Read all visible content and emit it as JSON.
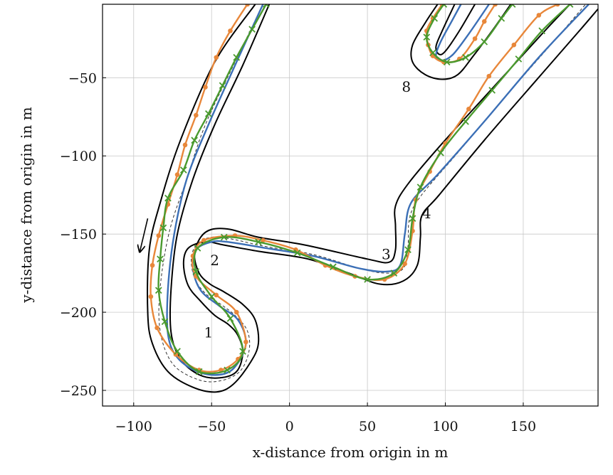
{
  "chart_data": {
    "type": "line",
    "title": "",
    "xlabel": "x-distance from origin in m",
    "ylabel": "y-distance from origin in m",
    "xlim": [
      -120,
      198
    ],
    "ylim": [
      -260,
      -3
    ],
    "grid": true,
    "x_ticks": [
      -100,
      -50,
      0,
      50,
      100,
      150
    ],
    "y_ticks": [
      -50,
      -100,
      -150,
      -200,
      -250
    ],
    "x_tick_labels": [
      "−100",
      "−50",
      "0",
      "50",
      "100",
      "150"
    ],
    "y_tick_labels": [
      "−50",
      "−100",
      "−150",
      "−200",
      "−250"
    ],
    "colors": {
      "boundary": "#000000",
      "centerline": "#333333",
      "blue": "#3b6fb6",
      "orange": "#e8873a",
      "green": "#4a9a2e",
      "grid": "#c8c8c8"
    },
    "annotations": [
      {
        "text": "1",
        "x": -52,
        "y": -216
      },
      {
        "text": "2",
        "x": -48,
        "y": -170
      },
      {
        "text": "3",
        "x": 62,
        "y": -166
      },
      {
        "text": "4",
        "x": 88,
        "y": -140
      },
      {
        "text": "8",
        "x": 75,
        "y": -59
      }
    ],
    "direction_arrow": {
      "from": [
        -91,
        -140
      ],
      "to": [
        -96,
        -161
      ]
    },
    "boundaries": [
      {
        "name": "",
        "points": [
          [
            -22,
            -3
          ],
          [
            -48,
            -40
          ],
          [
            -70,
            -90
          ],
          [
            -83,
            -130
          ],
          [
            -90,
            -160
          ],
          [
            -91,
            -200
          ],
          [
            -88,
            -220
          ],
          [
            -78,
            -238
          ],
          [
            -62,
            -248
          ],
          [
            -47,
            -251
          ],
          [
            -36,
            -246
          ],
          [
            -25,
            -232
          ],
          [
            -20,
            -220
          ],
          [
            -22,
            -205
          ],
          [
            -30,
            -195
          ],
          [
            -42,
            -187
          ],
          [
            -51,
            -182
          ],
          [
            -58,
            -175
          ],
          [
            -61,
            -163
          ],
          [
            -57,
            -152
          ],
          [
            -50,
            -147
          ],
          [
            -38,
            -147
          ],
          [
            -20,
            -152
          ],
          [
            10,
            -157
          ],
          [
            50,
            -166
          ],
          [
            64,
            -168
          ],
          [
            68,
            -160
          ],
          [
            68,
            -145
          ],
          [
            68,
            -132
          ],
          [
            76,
            -118
          ],
          [
            98,
            -92
          ],
          [
            130,
            -57
          ],
          [
            162,
            -22
          ],
          [
            180,
            -3
          ]
        ]
      },
      {
        "name": "",
        "points": [
          [
            -13,
            -3
          ],
          [
            -30,
            -42
          ],
          [
            -48,
            -80
          ],
          [
            -62,
            -115
          ],
          [
            -72,
            -150
          ],
          [
            -76,
            -185
          ],
          [
            -76,
            -213
          ],
          [
            -70,
            -230
          ],
          [
            -58,
            -240
          ],
          [
            -45,
            -242
          ],
          [
            -34,
            -238
          ],
          [
            -30,
            -226
          ],
          [
            -33,
            -215
          ],
          [
            -39,
            -208
          ],
          [
            -48,
            -202
          ],
          [
            -57,
            -193
          ],
          [
            -65,
            -183
          ],
          [
            -68,
            -169
          ],
          [
            -65,
            -159
          ],
          [
            -54,
            -155
          ],
          [
            -42,
            -157
          ],
          [
            -20,
            -161
          ],
          [
            12,
            -166
          ],
          [
            38,
            -175
          ],
          [
            58,
            -182
          ],
          [
            73,
            -180
          ],
          [
            82,
            -170
          ],
          [
            84,
            -152
          ],
          [
            85,
            -138
          ],
          [
            96,
            -125
          ],
          [
            125,
            -90
          ],
          [
            158,
            -52
          ],
          [
            186,
            -20
          ],
          [
            198,
            -6
          ]
        ]
      },
      {
        "name": "",
        "points": [
          [
            95,
            -3
          ],
          [
            87,
            -15
          ],
          [
            79,
            -29
          ],
          [
            79,
            -40
          ],
          [
            87,
            -48
          ],
          [
            98,
            -51
          ],
          [
            108,
            -48
          ],
          [
            118,
            -36
          ],
          [
            130,
            -20
          ],
          [
            142,
            -3
          ]
        ]
      },
      {
        "name": "",
        "points": [
          [
            119,
            -3
          ],
          [
            109,
            -20
          ],
          [
            100,
            -33
          ],
          [
            96,
            -35
          ],
          [
            94,
            -30
          ],
          [
            98,
            -20
          ],
          [
            106,
            -3
          ]
        ]
      }
    ],
    "centerline": {
      "name": "",
      "points": [
        [
          -17,
          -3
        ],
        [
          -35,
          -40
        ],
        [
          -54,
          -80
        ],
        [
          -66,
          -115
        ],
        [
          -77,
          -148
        ],
        [
          -83,
          -184
        ],
        [
          -83,
          -212
        ],
        [
          -75,
          -233
        ],
        [
          -59,
          -243
        ],
        [
          -45,
          -244
        ],
        [
          -32,
          -238
        ],
        [
          -26,
          -225
        ],
        [
          -27,
          -212
        ],
        [
          -35,
          -202
        ],
        [
          -44,
          -195
        ],
        [
          -54,
          -188
        ],
        [
          -61,
          -178
        ],
        [
          -63,
          -165
        ],
        [
          -59,
          -156
        ],
        [
          -50,
          -152
        ],
        [
          -38,
          -153
        ],
        [
          -15,
          -158
        ],
        [
          15,
          -163
        ],
        [
          45,
          -172
        ],
        [
          62,
          -175
        ],
        [
          73,
          -172
        ],
        [
          76,
          -158
        ],
        [
          77,
          -140
        ],
        [
          84,
          -126
        ],
        [
          108,
          -98
        ],
        [
          143,
          -57
        ],
        [
          172,
          -24
        ],
        [
          190,
          -3
        ]
      ]
    },
    "series": [
      {
        "name": "",
        "color": "#3b6fb6",
        "marker": "none",
        "points": [
          [
            -17,
            -3
          ],
          [
            -34,
            -40
          ],
          [
            -52,
            -80
          ],
          [
            -66,
            -115
          ],
          [
            -74,
            -150
          ],
          [
            -78,
            -185
          ],
          [
            -78,
            -214
          ],
          [
            -72,
            -229
          ],
          [
            -59,
            -238
          ],
          [
            -45,
            -240
          ],
          [
            -35,
            -235
          ],
          [
            -28,
            -220
          ],
          [
            -33,
            -205
          ],
          [
            -45,
            -196
          ],
          [
            -57,
            -186
          ],
          [
            -62,
            -172
          ],
          [
            -60,
            -160
          ],
          [
            -50,
            -155
          ],
          [
            -40,
            -155
          ],
          [
            -15,
            -159
          ],
          [
            15,
            -164
          ],
          [
            45,
            -172
          ],
          [
            62,
            -174
          ],
          [
            71,
            -170
          ],
          [
            74,
            -150
          ],
          [
            78,
            -130
          ],
          [
            95,
            -112
          ],
          [
            125,
            -78
          ],
          [
            160,
            -37
          ],
          [
            192,
            -3
          ]
        ]
      },
      {
        "name": "",
        "color": "#3b6fb6",
        "marker": "none",
        "points": [
          [
            110,
            -3
          ],
          [
            104,
            -14
          ],
          [
            97,
            -27
          ],
          [
            94,
            -36
          ],
          [
            98,
            -39
          ],
          [
            105,
            -35
          ],
          [
            115,
            -22
          ],
          [
            128,
            -3
          ]
        ]
      },
      {
        "name": "",
        "color": "#e8873a",
        "marker": "dot",
        "points": [
          [
            -27,
            -3
          ],
          [
            -38,
            -20
          ],
          [
            -47,
            -37
          ],
          [
            -54,
            -56
          ],
          [
            -60,
            -74
          ],
          [
            -67,
            -93
          ],
          [
            -72,
            -112
          ],
          [
            -78,
            -131
          ],
          [
            -84,
            -151
          ],
          [
            -88,
            -170
          ],
          [
            -89,
            -190
          ],
          [
            -85,
            -210
          ],
          [
            -73,
            -227
          ],
          [
            -58,
            -237
          ],
          [
            -44,
            -237
          ],
          [
            -33,
            -230
          ],
          [
            -28,
            -219
          ],
          [
            -34,
            -200
          ],
          [
            -47,
            -189
          ],
          [
            -60,
            -177
          ],
          [
            -62,
            -164
          ],
          [
            -55,
            -154
          ],
          [
            -35,
            -151
          ],
          [
            -17,
            -154
          ],
          [
            4,
            -160
          ],
          [
            23,
            -170
          ],
          [
            42,
            -177
          ],
          [
            61,
            -179
          ],
          [
            74,
            -169
          ],
          [
            79,
            -148
          ],
          [
            81,
            -128
          ],
          [
            90,
            -110
          ],
          [
            100,
            -92
          ],
          [
            115,
            -70
          ],
          [
            128,
            -49
          ],
          [
            144,
            -29
          ],
          [
            160,
            -10
          ],
          [
            172,
            -3
          ]
        ]
      },
      {
        "name": "",
        "color": "#e8873a",
        "marker": "dot",
        "points": [
          [
            98,
            -3
          ],
          [
            92,
            -12
          ],
          [
            88,
            -20
          ],
          [
            89,
            -29
          ],
          [
            92,
            -36
          ],
          [
            99,
            -40
          ],
          [
            109,
            -38
          ],
          [
            119,
            -25
          ],
          [
            125,
            -14
          ],
          [
            132,
            -3
          ]
        ]
      },
      {
        "name": "",
        "color": "#4a9a2e",
        "marker": "x",
        "points": [
          [
            -15,
            -3
          ],
          [
            -24,
            -19
          ],
          [
            -34,
            -37
          ],
          [
            -43,
            -55
          ],
          [
            -52,
            -73
          ],
          [
            -61,
            -90
          ],
          [
            -68,
            -109
          ],
          [
            -78,
            -127
          ],
          [
            -81,
            -146
          ],
          [
            -83,
            -166
          ],
          [
            -84,
            -186
          ],
          [
            -80,
            -206
          ],
          [
            -72,
            -225
          ],
          [
            -58,
            -238
          ],
          [
            -40,
            -237
          ],
          [
            -30,
            -225
          ],
          [
            -38,
            -204
          ],
          [
            -50,
            -190
          ],
          [
            -60,
            -174
          ],
          [
            -59,
            -159
          ],
          [
            -42,
            -152
          ],
          [
            -20,
            -155
          ],
          [
            5,
            -162
          ],
          [
            28,
            -171
          ],
          [
            50,
            -179
          ],
          [
            67,
            -175
          ],
          [
            76,
            -160
          ],
          [
            79,
            -140
          ],
          [
            84,
            -120
          ],
          [
            97,
            -98
          ],
          [
            113,
            -78
          ],
          [
            130,
            -58
          ],
          [
            147,
            -38
          ],
          [
            162,
            -20
          ],
          [
            180,
            -3
          ]
        ]
      },
      {
        "name": "",
        "color": "#4a9a2e",
        "marker": "x",
        "points": [
          [
            99,
            -3
          ],
          [
            93,
            -12
          ],
          [
            88,
            -24
          ],
          [
            92,
            -34
          ],
          [
            101,
            -40
          ],
          [
            113,
            -37
          ],
          [
            125,
            -27
          ],
          [
            136,
            -12
          ],
          [
            143,
            -3
          ]
        ]
      }
    ]
  }
}
